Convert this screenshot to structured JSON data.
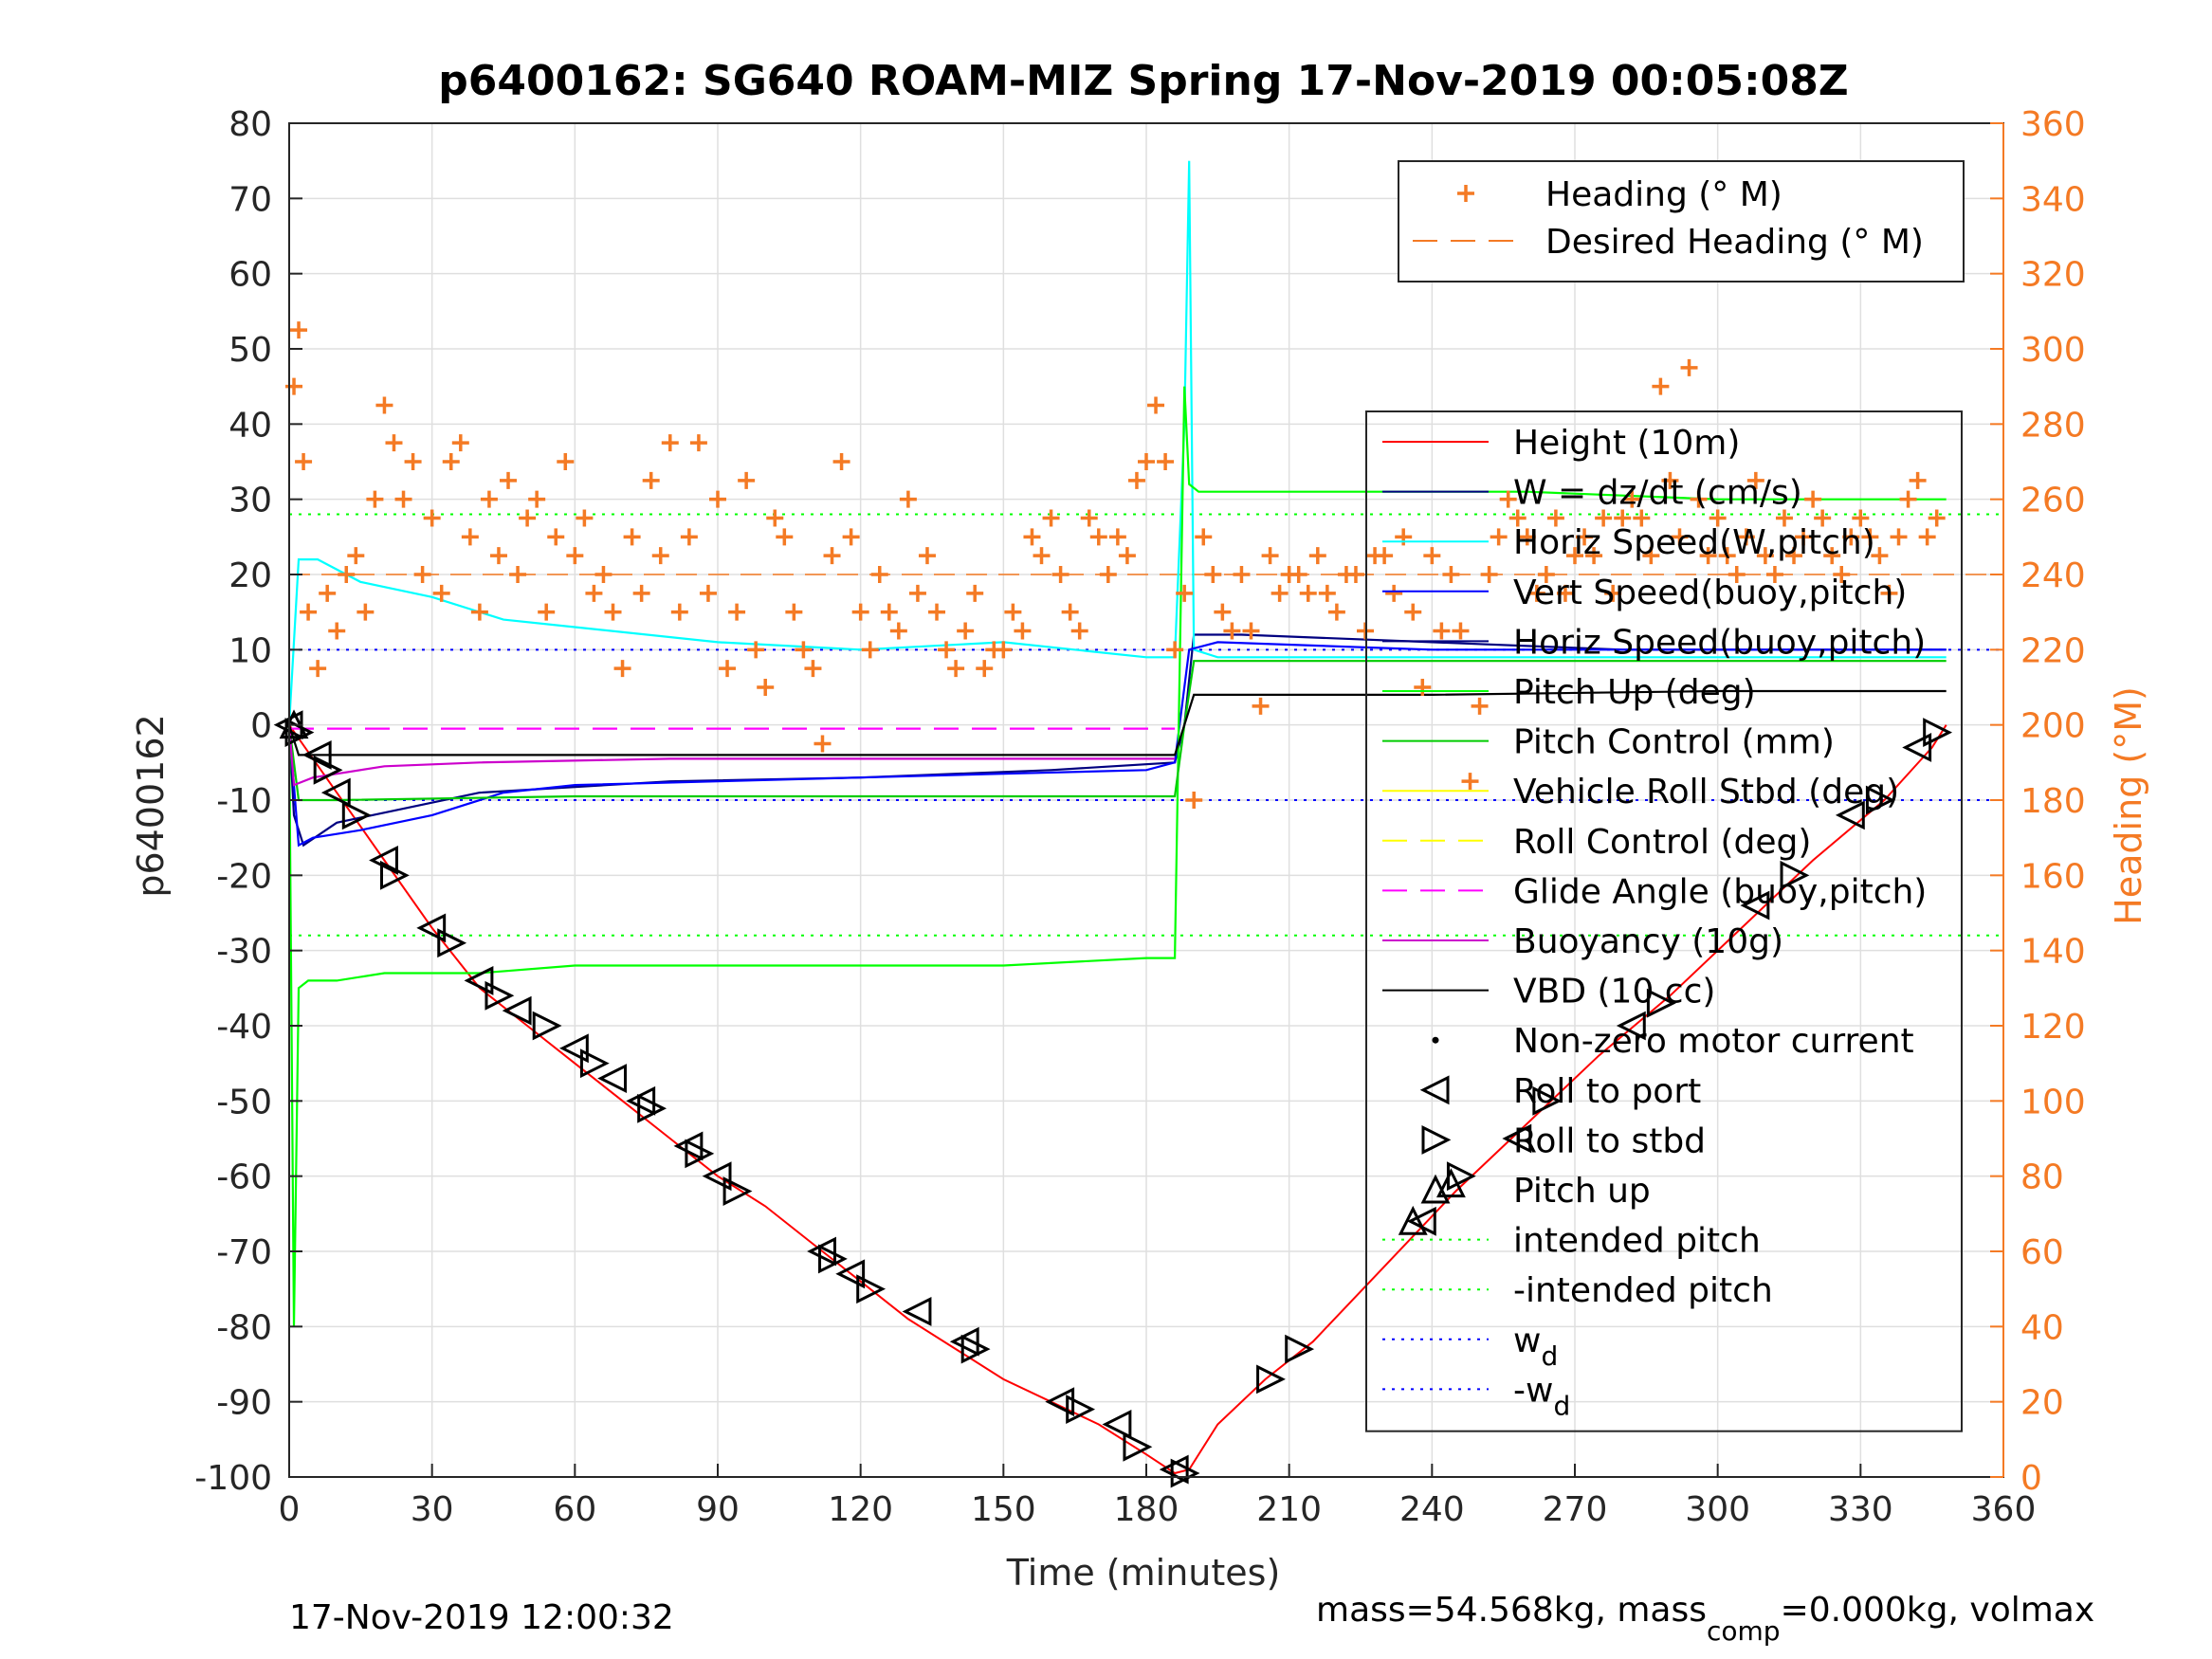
{
  "figure": {
    "title": "p6400162: SG640 ROAM-MIZ Spring 17-Nov-2019 00:05:08Z",
    "footer_left": "17-Nov-2019 12:00:32",
    "footer_right": {
      "mass_text": "mass=54.568kg, mass",
      "comp_sub": "comp",
      "tail_text": "=0.000kg, volmax"
    }
  },
  "legend_heading": {
    "entries": [
      {
        "label": "Heading (° M)",
        "style": "plus",
        "color": "#F47A24"
      },
      {
        "label": "Desired Heading (° M)",
        "style": "dash",
        "color": "#F47A24"
      }
    ]
  },
  "legend_main": {
    "entries": [
      {
        "label": "Height (10m)",
        "style": "solid",
        "color": "#ff0000"
      },
      {
        "label": "W = dz/dt (cm/s)",
        "style": "solid",
        "color": "#000080"
      },
      {
        "label": "Horiz Speed(W,pitch)",
        "style": "solid",
        "color": "#00ffff"
      },
      {
        "label": "Vert Speed(buoy,pitch)",
        "style": "solid",
        "color": "#0000ff"
      },
      {
        "label": "Horiz Speed(buoy,pitch)",
        "style": "solid",
        "color": "#000080"
      },
      {
        "label": "Pitch Up (deg)",
        "style": "solid",
        "color": "#00ff00"
      },
      {
        "label": "Pitch Control (mm)",
        "style": "solid",
        "color": "#00cc00"
      },
      {
        "label": "Vehicle Roll Stbd (deg)",
        "style": "solid",
        "color": "#ffff00"
      },
      {
        "label": "Roll Control (deg)",
        "style": "dash",
        "color": "#ffff00"
      },
      {
        "label": "Glide Angle (buoy,pitch)",
        "style": "dash",
        "color": "#ff00ff"
      },
      {
        "label": "Buoyancy (10g)",
        "style": "solid",
        "color": "#cc00cc"
      },
      {
        "label": "VBD (10 cc)",
        "style": "solid",
        "color": "#000000"
      },
      {
        "label": "Non-zero motor current",
        "style": "dot",
        "color": "#000000"
      },
      {
        "label": "Roll to port",
        "style": "tri-left",
        "color": "#000000"
      },
      {
        "label": "Roll to stbd",
        "style": "tri-right",
        "color": "#000000"
      },
      {
        "label": "Pitch up",
        "style": "tri-up",
        "color": "#000000"
      },
      {
        "label": "intended pitch",
        "style": "dotted",
        "color": "#00ff00"
      },
      {
        "label": "-intended pitch",
        "style": "dotted",
        "color": "#00ff00"
      },
      {
        "label": "w",
        "sub": "d",
        "style": "dotted",
        "color": "#0000ff"
      },
      {
        "label": "-w",
        "sub": "d",
        "style": "dotted",
        "color": "#0000ff"
      }
    ]
  },
  "colors": {
    "heading": "#F47A24",
    "axis": "#262626",
    "grid": "#dfdfdf"
  },
  "chart_data": {
    "type": "line",
    "title": "p6400162: SG640 ROAM-MIZ Spring 17-Nov-2019 00:05:08Z",
    "xlabel": "Time (minutes)",
    "ylabel": "p6400162",
    "y2label": "Heading (°M)",
    "xlim": [
      0,
      360
    ],
    "ylim": [
      -100,
      80
    ],
    "y2lim": [
      0,
      360
    ],
    "grid": true,
    "x_ticks": [
      "0",
      "30",
      "60",
      "90",
      "120",
      "150",
      "180",
      "210",
      "240",
      "270",
      "300",
      "330",
      "360"
    ],
    "y_ticks": [
      "80",
      "70",
      "60",
      "50",
      "40",
      "30",
      "20",
      "10",
      "0",
      "-10",
      "-20",
      "-30",
      "-40",
      "-50",
      "-60",
      "-70",
      "-80",
      "-90",
      "-100"
    ],
    "y2_ticks": [
      "360",
      "340",
      "320",
      "300",
      "280",
      "260",
      "240",
      "220",
      "200",
      "180",
      "160",
      "140",
      "120",
      "100",
      "80",
      "60",
      "40",
      "20",
      "0"
    ],
    "reference_lines": [
      {
        "name": "intended pitch",
        "y": 28
      },
      {
        "name": "-intended pitch",
        "y": -28
      },
      {
        "name": "w_d",
        "y": 10
      },
      {
        "name": "-w_d",
        "y": -10
      }
    ],
    "desired_heading_deg": 240,
    "series": [
      {
        "name": "Height (10m)",
        "color": "#ff0000",
        "x": [
          0,
          10,
          20,
          30,
          40,
          50,
          60,
          70,
          80,
          90,
          100,
          110,
          120,
          130,
          140,
          150,
          160,
          170,
          180,
          186,
          189,
          195,
          205,
          215,
          230,
          245,
          260,
          275,
          290,
          305,
          320,
          335,
          345,
          348
        ],
        "y": [
          0,
          -9,
          -18,
          -27,
          -35,
          -40,
          -45,
          -50,
          -55,
          -60,
          -64,
          -69,
          -74,
          -79,
          -83,
          -87,
          -90,
          -93,
          -97,
          -99.5,
          -99,
          -93,
          -87,
          -82,
          -72,
          -62,
          -53,
          -44,
          -36,
          -27,
          -18,
          -10,
          -3,
          0
        ]
      },
      {
        "name": "W = dz/dt (cm/s)",
        "color": "#000080",
        "x": [
          0,
          1,
          3,
          10,
          40,
          80,
          120,
          160,
          186,
          188,
          190,
          200,
          240,
          280,
          300,
          330,
          348
        ],
        "y": [
          0,
          -12,
          -16,
          -13,
          -9,
          -7.5,
          -7,
          -6,
          -5,
          0,
          12,
          12,
          11,
          10,
          10,
          10,
          10
        ]
      },
      {
        "name": "Horiz Speed(W,pitch)",
        "color": "#00ffff",
        "x": [
          0,
          2,
          6,
          15,
          30,
          45,
          60,
          90,
          120,
          150,
          180,
          186,
          188,
          189,
          190,
          195,
          220,
          260,
          300,
          330,
          348
        ],
        "y": [
          0,
          22,
          22,
          19,
          17,
          14,
          13,
          11,
          10,
          11,
          9,
          9,
          40,
          75,
          10,
          9,
          9,
          9,
          9,
          9,
          9
        ]
      },
      {
        "name": "Vert Speed(buoy,pitch)",
        "color": "#0000ff",
        "x": [
          0,
          2,
          5,
          15,
          30,
          45,
          60,
          90,
          120,
          150,
          180,
          186,
          189,
          195,
          240,
          280,
          320,
          348
        ],
        "y": [
          0,
          -16,
          -15,
          -14,
          -12,
          -9,
          -8,
          -7.5,
          -7,
          -6.5,
          -6,
          -5,
          10,
          11,
          10,
          10,
          10,
          10
        ]
      },
      {
        "name": "Pitch Up (deg)",
        "color": "#00ff00",
        "x": [
          0,
          1,
          2,
          4,
          10,
          20,
          40,
          60,
          90,
          120,
          150,
          180,
          186,
          188,
          189,
          191,
          200,
          230,
          260,
          300,
          330,
          348
        ],
        "y": [
          0,
          -80,
          -35,
          -34,
          -34,
          -33,
          -33,
          -32,
          -32,
          -32,
          -32,
          -31,
          -31,
          45,
          32,
          31,
          31,
          31,
          31,
          30,
          30,
          30
        ]
      },
      {
        "name": "Pitch Control (mm)",
        "color": "#00cc00",
        "x": [
          0,
          2,
          10,
          60,
          120,
          186,
          188,
          190,
          250,
          300,
          348
        ],
        "y": [
          0,
          -10,
          -10,
          -9.5,
          -9.5,
          -9.5,
          0,
          8.5,
          8.5,
          8.5,
          8.5
        ]
      },
      {
        "name": "Buoyancy (10g)",
        "color": "#cc00cc",
        "x": [
          0,
          1,
          5,
          20,
          40,
          80,
          120,
          186
        ],
        "y": [
          0,
          -8,
          -7,
          -5.5,
          -5,
          -4.5,
          -4.5,
          -4.5
        ]
      },
      {
        "name": "Glide Angle (buoy,pitch)",
        "color": "#ff00ff",
        "x": [
          0,
          5,
          186
        ],
        "y": [
          -0.5,
          -0.5,
          -0.5
        ]
      },
      {
        "name": "VBD (10 cc)",
        "color": "#000000",
        "x": [
          0,
          2,
          186,
          188,
          190,
          240,
          300,
          348
        ],
        "y": [
          0,
          -4,
          -4,
          0,
          4,
          4,
          4.5,
          4.5
        ]
      },
      {
        "name": "Heading (° M)",
        "axis": "right",
        "color": "#F47A24",
        "x": [
          1,
          2,
          3,
          4,
          6,
          8,
          10,
          12,
          14,
          16,
          18,
          20,
          22,
          24,
          26,
          28,
          30,
          32,
          34,
          36,
          38,
          40,
          42,
          44,
          46,
          48,
          50,
          52,
          54,
          56,
          58,
          60,
          62,
          64,
          66,
          68,
          70,
          72,
          74,
          76,
          78,
          80,
          82,
          84,
          86,
          88,
          90,
          92,
          94,
          96,
          98,
          100,
          102,
          104,
          106,
          108,
          110,
          112,
          114,
          116,
          118,
          120,
          122,
          124,
          126,
          128,
          130,
          132,
          134,
          136,
          138,
          140,
          142,
          144,
          146,
          148,
          150,
          152,
          154,
          156,
          158,
          160,
          162,
          164,
          166,
          168,
          170,
          172,
          174,
          176,
          178,
          180,
          182,
          184,
          186,
          188,
          190,
          192,
          194,
          196,
          198,
          200,
          202,
          204,
          206,
          208,
          210,
          212,
          214,
          216,
          218,
          220,
          222,
          224,
          226,
          228,
          230,
          232,
          234,
          236,
          238,
          240,
          242,
          244,
          246,
          248,
          250,
          252,
          254,
          256,
          258,
          260,
          262,
          264,
          266,
          268,
          270,
          272,
          274,
          276,
          278,
          280,
          282,
          284,
          286,
          288,
          290,
          292,
          294,
          296,
          298,
          300,
          302,
          304,
          306,
          308,
          310,
          312,
          314,
          316,
          318,
          320,
          322,
          324,
          326,
          328,
          330,
          332,
          334,
          336,
          338,
          340,
          342,
          344,
          346
        ],
        "y": [
          290,
          305,
          270,
          230,
          215,
          235,
          225,
          240,
          245,
          230,
          260,
          285,
          275,
          260,
          270,
          240,
          255,
          235,
          270,
          275,
          250,
          230,
          260,
          245,
          265,
          240,
          255,
          260,
          230,
          250,
          270,
          245,
          255,
          235,
          240,
          230,
          215,
          250,
          235,
          265,
          245,
          275,
          230,
          250,
          275,
          235,
          260,
          215,
          230,
          265,
          220,
          210,
          255,
          250,
          230,
          220,
          215,
          195,
          245,
          270,
          250,
          230,
          220,
          240,
          230,
          225,
          260,
          235,
          245,
          230,
          220,
          215,
          225,
          235,
          215,
          220,
          220,
          230,
          225,
          250,
          245,
          255,
          240,
          230,
          225,
          255,
          250,
          240,
          250,
          245,
          265,
          270,
          285,
          270,
          220,
          235,
          180,
          250,
          240,
          230,
          225,
          240,
          225,
          205,
          245,
          235,
          240,
          240,
          235,
          245,
          235,
          230,
          240,
          240,
          225,
          245,
          245,
          235,
          250,
          230,
          210,
          245,
          225,
          240,
          225,
          185,
          205,
          240,
          250,
          260,
          255,
          250,
          235,
          240,
          255,
          235,
          245,
          250,
          245,
          255,
          235,
          255,
          260,
          255,
          245,
          290,
          265,
          250,
          295,
          260,
          245,
          255,
          245,
          240,
          250,
          265,
          245,
          240,
          255,
          245,
          250,
          260,
          255,
          245,
          240,
          250,
          255,
          250,
          245,
          235,
          250,
          260,
          265,
          250,
          255
        ]
      },
      {
        "name": "Roll to port",
        "marker": "tri-left",
        "color": "#000000",
        "x": [
          0,
          6,
          10,
          20,
          30,
          40,
          48,
          60,
          68,
          74,
          84,
          90,
          112,
          118,
          132,
          142,
          162,
          174,
          186,
          238,
          258,
          282,
          308,
          328,
          342
        ],
        "y": [
          0,
          -4,
          -9,
          -18,
          -27,
          -34,
          -38,
          -43,
          -47,
          -50,
          -56,
          -60,
          -70,
          -73,
          -78,
          -82,
          -90,
          -93,
          -99,
          -66,
          -55,
          -40,
          -24,
          -12,
          -3
        ]
      },
      {
        "name": "Roll to stbd",
        "marker": "tri-right",
        "color": "#000000",
        "x": [
          2,
          8,
          14,
          22,
          34,
          44,
          54,
          64,
          76,
          86,
          94,
          114,
          122,
          144,
          166,
          178,
          188,
          206,
          212,
          246,
          264,
          288,
          316,
          334,
          346
        ],
        "y": [
          -1,
          -6,
          -12,
          -20,
          -29,
          -36,
          -40,
          -45,
          -51,
          -57,
          -62,
          -71,
          -75,
          -83,
          -91,
          -96,
          -99.5,
          -87,
          -83,
          -60,
          -50,
          -37,
          -20,
          -10,
          -1
        ]
      },
      {
        "name": "Pitch up",
        "marker": "tri-up",
        "color": "#000000",
        "x": [
          1,
          236,
          244
        ],
        "y": [
          0,
          -66,
          -61
        ]
      }
    ]
  }
}
